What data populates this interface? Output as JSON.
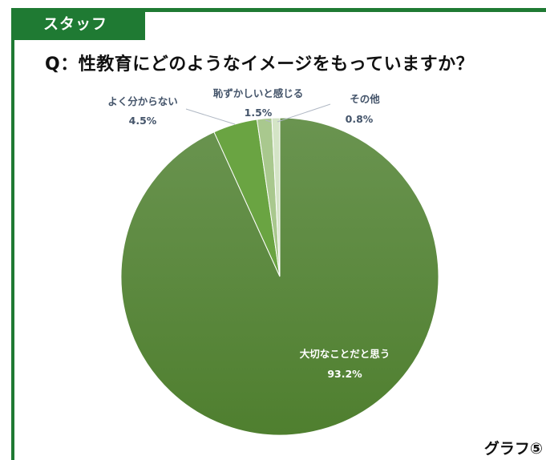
{
  "header": {
    "tab_label": "スタッフ",
    "question": "Q：性教育にどのようなイメージをもっていますか？"
  },
  "footer": {
    "graph_label": "グラフ⑤"
  },
  "colors": {
    "accent": "#1f7a33",
    "slice_main": "#5a8a3c",
    "slice_unknown": "#6aa442",
    "slice_shy": "#a9c88e",
    "slice_other": "#d4e4c6",
    "label_dark": "#44546a"
  },
  "chart_data": {
    "type": "pie",
    "title": "",
    "slices": [
      {
        "name": "大切なことだと思う",
        "value": 93.2,
        "label": "93.2%"
      },
      {
        "name": "よく分からない",
        "value": 4.5,
        "label": "4.5%"
      },
      {
        "name": "恥ずかしいと感じる",
        "value": 1.5,
        "label": "1.5%"
      },
      {
        "name": "その他",
        "value": 0.8,
        "label": "0.8%"
      }
    ],
    "start_angle_deg": 0,
    "direction": "clockwise"
  }
}
